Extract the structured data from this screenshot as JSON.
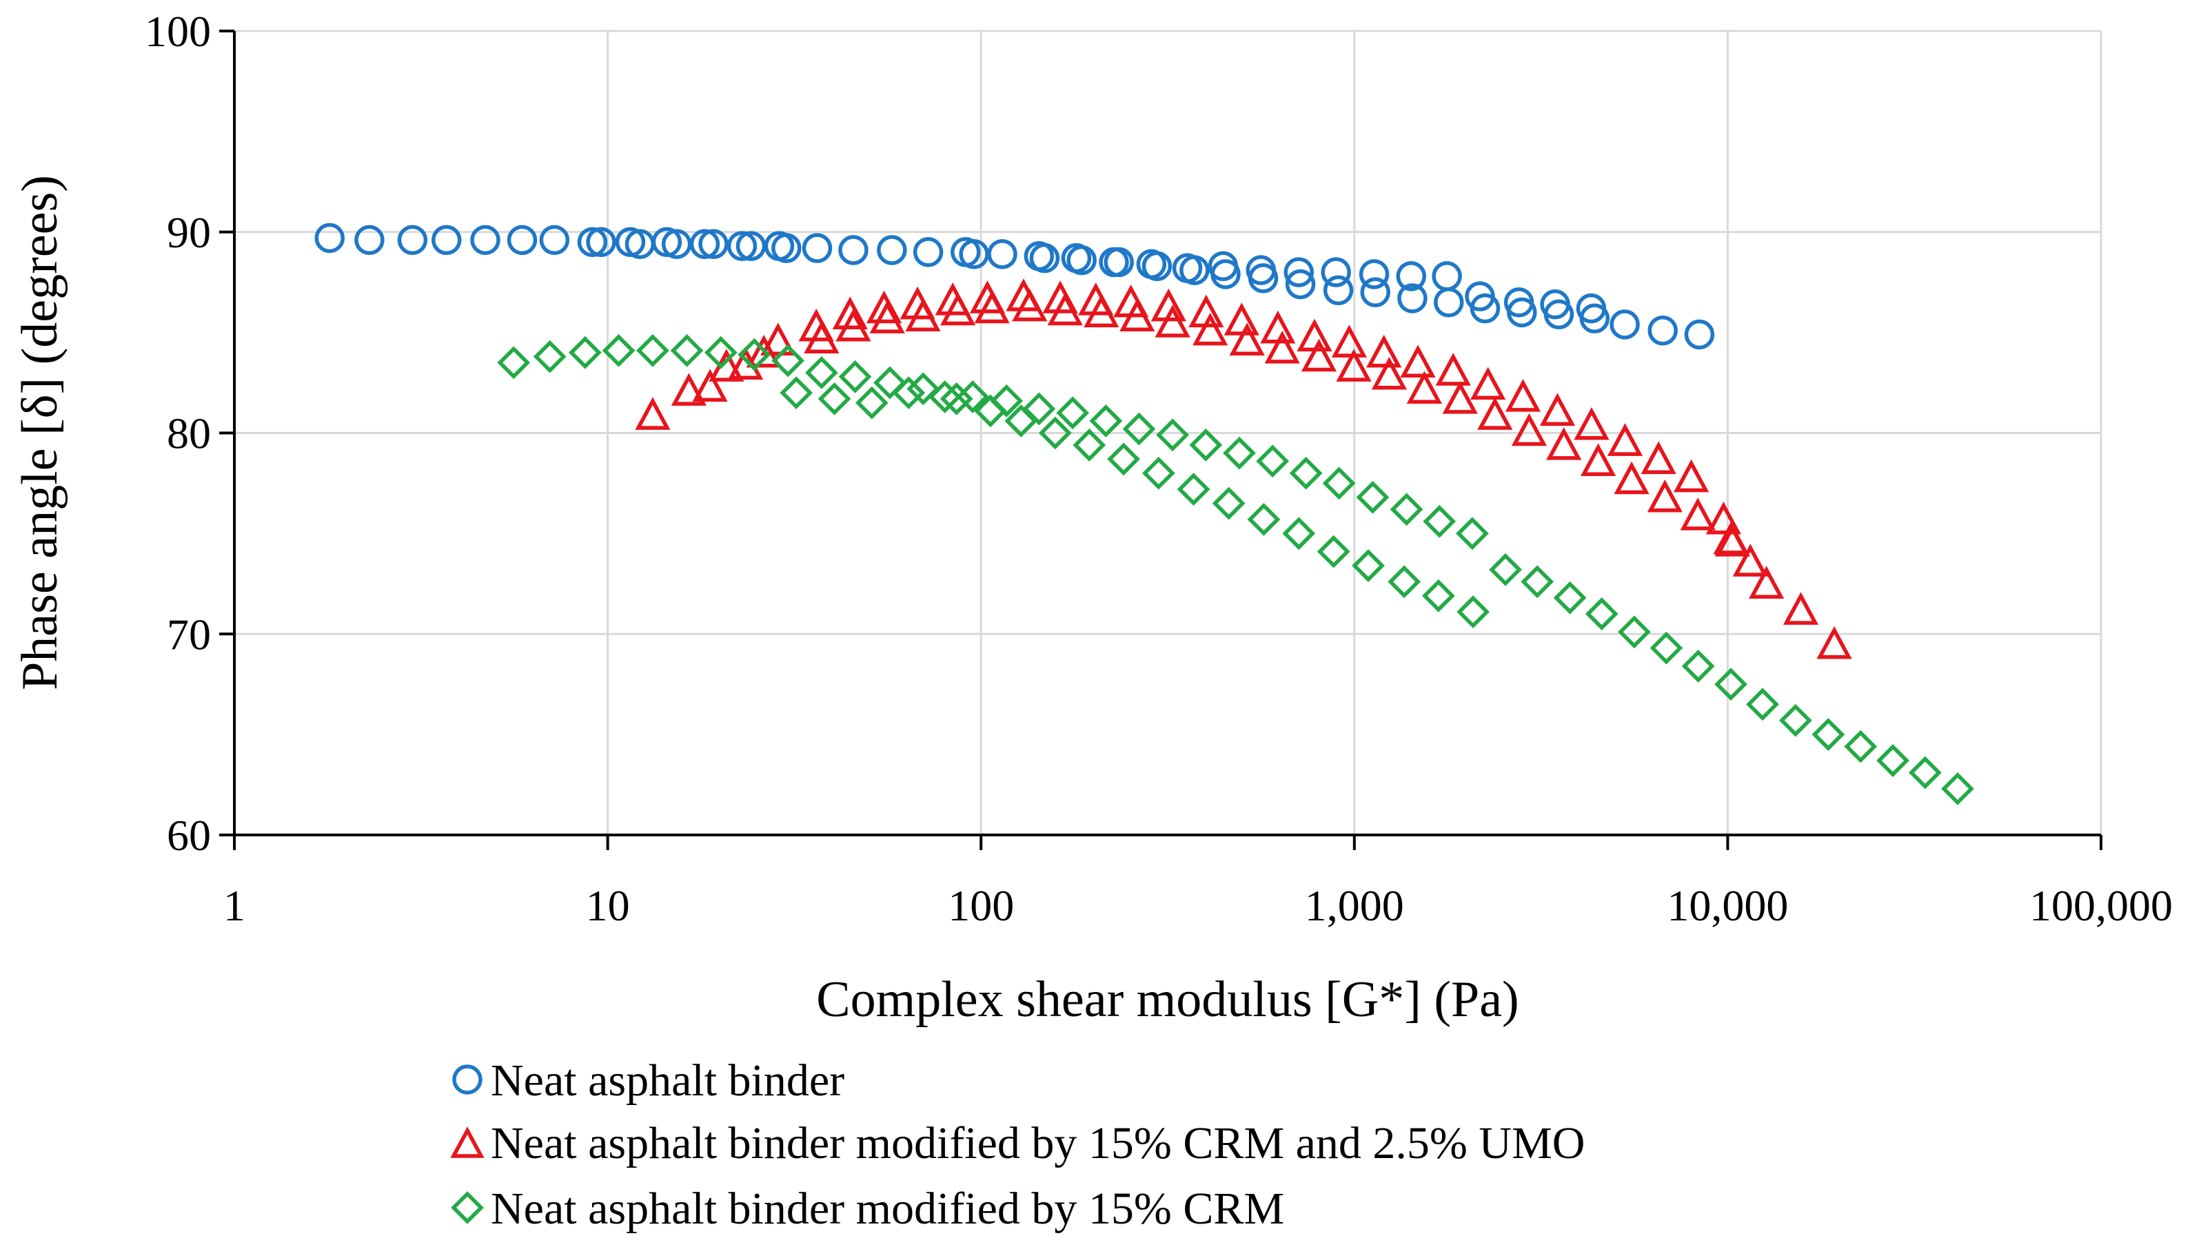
{
  "chart_data": {
    "type": "scatter",
    "title": "",
    "xlabel": "Complex shear modulus [G*] (Pa)",
    "ylabel": "Phase angle [δ] (degrees)",
    "xscale": "log",
    "xlim": [
      1,
      100000
    ],
    "ylim": [
      60,
      100
    ],
    "grid": true,
    "legend_position": "bottom",
    "x_ticks": [
      1,
      10,
      100,
      1000,
      10000,
      100000
    ],
    "x_tick_labels": [
      "1",
      "10",
      "100",
      "1,000",
      "10,000",
      "100,000"
    ],
    "y_ticks": [
      60,
      70,
      80,
      90,
      100
    ],
    "y_tick_labels": [
      "60",
      "70",
      "80",
      "90",
      "100"
    ],
    "series": [
      {
        "name": "Neat asphalt binder",
        "marker": "circle",
        "color": "#1f78c8",
        "points": [
          [
            1.8,
            89.7
          ],
          [
            2.3,
            89.6
          ],
          [
            3.0,
            89.6
          ],
          [
            3.7,
            89.6
          ],
          [
            4.7,
            89.6
          ],
          [
            5.9,
            89.6
          ],
          [
            7.2,
            89.6
          ],
          [
            9.1,
            89.5
          ],
          [
            9.6,
            89.5
          ],
          [
            11.5,
            89.5
          ],
          [
            12.2,
            89.4
          ],
          [
            14.4,
            89.5
          ],
          [
            15.3,
            89.4
          ],
          [
            18.2,
            89.4
          ],
          [
            19.2,
            89.4
          ],
          [
            22.9,
            89.3
          ],
          [
            24.2,
            89.3
          ],
          [
            28.8,
            89.3
          ],
          [
            30.1,
            89.2
          ],
          [
            36.4,
            89.2
          ],
          [
            45.5,
            89.1
          ],
          [
            57.7,
            89.1
          ],
          [
            72.2,
            89.0
          ],
          [
            90.9,
            89.0
          ],
          [
            95.8,
            88.9
          ],
          [
            114,
            88.9
          ],
          [
            143,
            88.8
          ],
          [
            148,
            88.7
          ],
          [
            180,
            88.7
          ],
          [
            186,
            88.6
          ],
          [
            227,
            88.5
          ],
          [
            234,
            88.5
          ],
          [
            286,
            88.4
          ],
          [
            296,
            88.3
          ],
          [
            357,
            88.2
          ],
          [
            373,
            88.1
          ],
          [
            445,
            88.3
          ],
          [
            452,
            87.9
          ],
          [
            562,
            88.1
          ],
          [
            570,
            87.7
          ],
          [
            710,
            88.0
          ],
          [
            717,
            87.4
          ],
          [
            893,
            88.0
          ],
          [
            906,
            87.1
          ],
          [
            1130,
            87.9
          ],
          [
            1138,
            87.0
          ],
          [
            1420,
            87.8
          ],
          [
            1430,
            86.7
          ],
          [
            1770,
            87.8
          ],
          [
            1790,
            86.5
          ],
          [
            2170,
            86.8
          ],
          [
            2240,
            86.2
          ],
          [
            2760,
            86.5
          ],
          [
            2810,
            86.0
          ],
          [
            3450,
            86.4
          ],
          [
            3530,
            85.9
          ],
          [
            4310,
            86.2
          ],
          [
            4400,
            85.7
          ],
          [
            5300,
            85.4
          ],
          [
            6700,
            85.1
          ],
          [
            8400,
            84.9
          ]
        ]
      },
      {
        "name": "Neat asphalt binder modified by 15% CRM and 2.5% UMO",
        "marker": "triangle",
        "color": "#e8141c",
        "points": [
          [
            13.2,
            80.8
          ],
          [
            16.5,
            82.0
          ],
          [
            18.8,
            82.2
          ],
          [
            20.8,
            83.2
          ],
          [
            23.4,
            83.3
          ],
          [
            26.2,
            83.9
          ],
          [
            28.6,
            84.5
          ],
          [
            36.2,
            85.2
          ],
          [
            37.4,
            84.6
          ],
          [
            44.6,
            85.8
          ],
          [
            45.5,
            85.2
          ],
          [
            55.0,
            86.1
          ],
          [
            56.1,
            85.6
          ],
          [
            67.6,
            86.3
          ],
          [
            69.9,
            85.7
          ],
          [
            84.0,
            86.5
          ],
          [
            86.7,
            86.0
          ],
          [
            104,
            86.6
          ],
          [
            107,
            86.1
          ],
          [
            130,
            86.7
          ],
          [
            135,
            86.2
          ],
          [
            163,
            86.6
          ],
          [
            168,
            86.0
          ],
          [
            203,
            86.5
          ],
          [
            210,
            85.9
          ],
          [
            252,
            86.4
          ],
          [
            262,
            85.7
          ],
          [
            318,
            86.2
          ],
          [
            326,
            85.4
          ],
          [
            401,
            85.9
          ],
          [
            411,
            85.0
          ],
          [
            499,
            85.5
          ],
          [
            516,
            84.5
          ],
          [
            624,
            85.1
          ],
          [
            641,
            84.1
          ],
          [
            782,
            84.7
          ],
          [
            804,
            83.7
          ],
          [
            969,
            84.4
          ],
          [
            997,
            83.2
          ],
          [
            1200,
            83.9
          ],
          [
            1240,
            82.8
          ],
          [
            1480,
            83.4
          ],
          [
            1540,
            82.1
          ],
          [
            1840,
            83.0
          ],
          [
            1920,
            81.6
          ],
          [
            2280,
            82.3
          ],
          [
            2380,
            80.8
          ],
          [
            2830,
            81.7
          ],
          [
            2940,
            80.0
          ],
          [
            3500,
            81.0
          ],
          [
            3640,
            79.3
          ],
          [
            4320,
            80.3
          ],
          [
            4500,
            78.5
          ],
          [
            5310,
            79.5
          ],
          [
            5530,
            77.6
          ],
          [
            6530,
            78.6
          ],
          [
            6790,
            76.7
          ],
          [
            7990,
            77.7
          ],
          [
            8320,
            75.8
          ],
          [
            9750,
            75.6
          ],
          [
            10200,
            74.6
          ],
          [
            10300,
            74.5
          ],
          [
            11500,
            73.5
          ],
          [
            12700,
            72.4
          ],
          [
            15700,
            71.1
          ],
          [
            19300,
            69.4
          ]
        ]
      },
      {
        "name": "Neat asphalt binder modified by 15% CRM",
        "marker": "diamond",
        "color": "#22aa44",
        "points": [
          [
            5.6,
            83.5
          ],
          [
            7.0,
            83.8
          ],
          [
            8.7,
            84.0
          ],
          [
            10.7,
            84.1
          ],
          [
            13.2,
            84.1
          ],
          [
            16.3,
            84.1
          ],
          [
            20.1,
            84.0
          ],
          [
            24.7,
            83.9
          ],
          [
            30.4,
            83.6
          ],
          [
            32.0,
            82.0
          ],
          [
            37.4,
            83.0
          ],
          [
            40.5,
            81.7
          ],
          [
            46.0,
            82.8
          ],
          [
            51.0,
            81.5
          ],
          [
            57.0,
            82.5
          ],
          [
            64.0,
            82.0
          ],
          [
            70.0,
            82.2
          ],
          [
            80.0,
            81.8
          ],
          [
            86.0,
            81.7
          ],
          [
            95.0,
            81.8
          ],
          [
            106,
            81.1
          ],
          [
            117,
            81.6
          ],
          [
            128,
            80.6
          ],
          [
            143,
            81.2
          ],
          [
            158,
            80.0
          ],
          [
            176,
            81.0
          ],
          [
            195,
            79.4
          ],
          [
            216,
            80.6
          ],
          [
            241,
            78.7
          ],
          [
            265,
            80.2
          ],
          [
            299,
            78.0
          ],
          [
            326,
            79.9
          ],
          [
            371,
            77.2
          ],
          [
            400,
            79.4
          ],
          [
            461,
            76.5
          ],
          [
            492,
            79.0
          ],
          [
            572,
            75.7
          ],
          [
            604,
            78.6
          ],
          [
            710,
            75.0
          ],
          [
            742,
            78.0
          ],
          [
            880,
            74.1
          ],
          [
            910,
            77.5
          ],
          [
            1090,
            73.4
          ],
          [
            1120,
            76.8
          ],
          [
            1360,
            72.6
          ],
          [
            1380,
            76.2
          ],
          [
            1680,
            71.9
          ],
          [
            1690,
            75.6
          ],
          [
            2080,
            71.1
          ],
          [
            2070,
            75.0
          ],
          [
            2540,
            73.2
          ],
          [
            3090,
            72.6
          ],
          [
            3780,
            71.8
          ],
          [
            4600,
            71.0
          ],
          [
            5620,
            70.1
          ],
          [
            6850,
            69.3
          ],
          [
            8340,
            68.4
          ],
          [
            10200,
            67.5
          ],
          [
            12400,
            66.5
          ],
          [
            15200,
            65.7
          ],
          [
            18600,
            65.0
          ],
          [
            22700,
            64.4
          ],
          [
            27700,
            63.7
          ],
          [
            33800,
            63.1
          ],
          [
            41300,
            62.3
          ]
        ]
      }
    ]
  },
  "colors": {
    "neat": "#1f78c8",
    "umo": "#e8141c",
    "crm": "#22aa44"
  }
}
